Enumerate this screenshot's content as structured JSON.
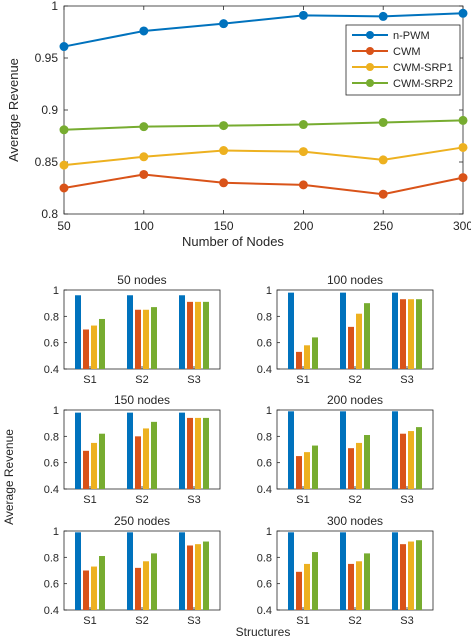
{
  "chart_data": [
    {
      "type": "line",
      "xlabel": "Number of Nodes",
      "ylabel": "Average Revenue",
      "x": [
        50,
        100,
        150,
        200,
        250,
        300
      ],
      "xlim": [
        50,
        300
      ],
      "ylim": [
        0.8,
        1.0
      ],
      "xticks": [
        "50",
        "100",
        "150",
        "200",
        "250",
        "300"
      ],
      "yticks": [
        "0.8",
        "0.85",
        "0.9",
        "0.95",
        "1"
      ],
      "legend_position": "top-right",
      "grid": false,
      "series": [
        {
          "name": "n-PWM",
          "color": "#0072BD",
          "values": [
            0.961,
            0.976,
            0.983,
            0.991,
            0.99,
            0.993
          ]
        },
        {
          "name": "CWM",
          "color": "#D95319",
          "values": [
            0.825,
            0.838,
            0.83,
            0.828,
            0.819,
            0.835
          ]
        },
        {
          "name": "CWM-SRP1",
          "color": "#EDB120",
          "values": [
            0.847,
            0.855,
            0.861,
            0.86,
            0.852,
            0.864
          ]
        },
        {
          "name": "CWM-SRP2",
          "color": "#77AC30",
          "values": [
            0.881,
            0.884,
            0.885,
            0.886,
            0.888,
            0.89
          ]
        }
      ]
    },
    {
      "type": "bar",
      "ylabel": "Average Revenue",
      "xlabel": "Structures",
      "categories": [
        "S1",
        "S2",
        "S3"
      ],
      "ylim": [
        0.4,
        1.0
      ],
      "yticks": [
        "0.4",
        "0.6",
        "0.8",
        "1"
      ],
      "series_colors": [
        "#0072BD",
        "#D95319",
        "#EDB120",
        "#77AC30"
      ],
      "panels": [
        {
          "title": "50 nodes",
          "values": [
            [
              0.96,
              0.7,
              0.73,
              0.78
            ],
            [
              0.96,
              0.85,
              0.85,
              0.87
            ],
            [
              0.96,
              0.91,
              0.91,
              0.91
            ]
          ]
        },
        {
          "title": "100 nodes",
          "values": [
            [
              0.98,
              0.53,
              0.58,
              0.64
            ],
            [
              0.98,
              0.72,
              0.82,
              0.9
            ],
            [
              0.98,
              0.93,
              0.93,
              0.93
            ]
          ]
        },
        {
          "title": "150 nodes",
          "values": [
            [
              0.98,
              0.69,
              0.75,
              0.82
            ],
            [
              0.98,
              0.8,
              0.86,
              0.91
            ],
            [
              0.98,
              0.94,
              0.94,
              0.94
            ]
          ]
        },
        {
          "title": "200 nodes",
          "values": [
            [
              0.99,
              0.65,
              0.68,
              0.73
            ],
            [
              0.99,
              0.71,
              0.75,
              0.81
            ],
            [
              0.99,
              0.82,
              0.84,
              0.87
            ]
          ]
        },
        {
          "title": "250 nodes",
          "values": [
            [
              0.99,
              0.7,
              0.73,
              0.81
            ],
            [
              0.99,
              0.72,
              0.77,
              0.83
            ],
            [
              0.99,
              0.89,
              0.9,
              0.92
            ]
          ]
        },
        {
          "title": "300 nodes",
          "values": [
            [
              0.99,
              0.69,
              0.75,
              0.84
            ],
            [
              0.99,
              0.75,
              0.77,
              0.83
            ],
            [
              0.99,
              0.9,
              0.92,
              0.93
            ]
          ]
        }
      ]
    }
  ]
}
